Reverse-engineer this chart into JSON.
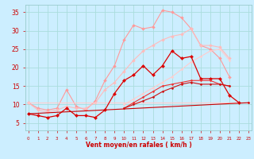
{
  "background_color": "#cceeff",
  "grid_color": "#aadddd",
  "xlabel": "Vent moyen/en rafales ( km/h )",
  "yticks": [
    5,
    10,
    15,
    20,
    25,
    30,
    35
  ],
  "ylim": [
    3,
    37
  ],
  "xlim": [
    -0.3,
    23.3
  ],
  "series": [
    {
      "color": "#ff9999",
      "alpha": 1.0,
      "linewidth": 0.8,
      "markersize": 2.0,
      "data": [
        10.5,
        9.0,
        8.5,
        9.0,
        14.0,
        9.5,
        8.5,
        11.0,
        16.5,
        20.5,
        27.5,
        31.5,
        30.5,
        31.0,
        35.5,
        35.0,
        33.5,
        30.5,
        26.0,
        25.0,
        22.5,
        17.5,
        null,
        null
      ]
    },
    {
      "color": "#ffbbbb",
      "alpha": 1.0,
      "linewidth": 0.8,
      "markersize": 2.0,
      "data": [
        10.5,
        8.5,
        8.0,
        8.5,
        9.5,
        9.0,
        9.0,
        10.5,
        14.0,
        16.0,
        19.0,
        22.0,
        24.5,
        26.0,
        27.5,
        28.5,
        29.0,
        30.5,
        26.0,
        26.0,
        25.5,
        22.5,
        null,
        null
      ]
    },
    {
      "color": "#ffcccc",
      "alpha": 1.0,
      "linewidth": 0.8,
      "markersize": 1.5,
      "data": [
        10.5,
        null,
        null,
        null,
        null,
        null,
        null,
        null,
        null,
        null,
        null,
        null,
        null,
        null,
        null,
        null,
        null,
        null,
        null,
        null,
        null,
        null,
        null,
        10.5
      ]
    },
    {
      "color": "#ffcccc",
      "alpha": 1.0,
      "linewidth": 0.8,
      "markersize": 1.5,
      "data": [
        null,
        null,
        null,
        null,
        null,
        null,
        null,
        null,
        null,
        null,
        10.0,
        11.5,
        13.0,
        14.5,
        16.0,
        17.5,
        19.5,
        21.5,
        23.0,
        24.5,
        25.0,
        22.0,
        null,
        null
      ]
    },
    {
      "color": "#dd0000",
      "alpha": 1.0,
      "linewidth": 0.9,
      "markersize": 2.2,
      "data": [
        7.5,
        7.0,
        6.5,
        7.0,
        9.0,
        7.0,
        7.0,
        6.5,
        8.5,
        13.0,
        16.5,
        18.0,
        20.5,
        18.0,
        20.5,
        24.5,
        22.5,
        23.0,
        17.0,
        17.0,
        17.0,
        12.5,
        10.5,
        null
      ]
    },
    {
      "color": "#cc0000",
      "alpha": 1.0,
      "linewidth": 0.8,
      "markersize": 1.5,
      "data": [
        7.5,
        null,
        null,
        null,
        null,
        null,
        null,
        null,
        null,
        null,
        null,
        null,
        null,
        null,
        null,
        null,
        null,
        null,
        null,
        null,
        null,
        null,
        null,
        10.5
      ]
    },
    {
      "color": "#ee3333",
      "alpha": 1.0,
      "linewidth": 0.8,
      "markersize": 1.5,
      "data": [
        null,
        null,
        null,
        null,
        null,
        null,
        null,
        null,
        null,
        null,
        9.0,
        10.5,
        12.0,
        13.5,
        15.0,
        15.5,
        16.0,
        16.5,
        16.5,
        16.5,
        15.5,
        15.0,
        null,
        null
      ]
    },
    {
      "color": "#cc1111",
      "alpha": 1.0,
      "linewidth": 0.8,
      "markersize": 1.5,
      "data": [
        null,
        null,
        null,
        null,
        null,
        null,
        null,
        null,
        null,
        null,
        9.0,
        10.0,
        11.0,
        12.0,
        13.5,
        14.5,
        15.5,
        16.0,
        15.5,
        15.5,
        15.5,
        15.0,
        null,
        null
      ]
    }
  ]
}
